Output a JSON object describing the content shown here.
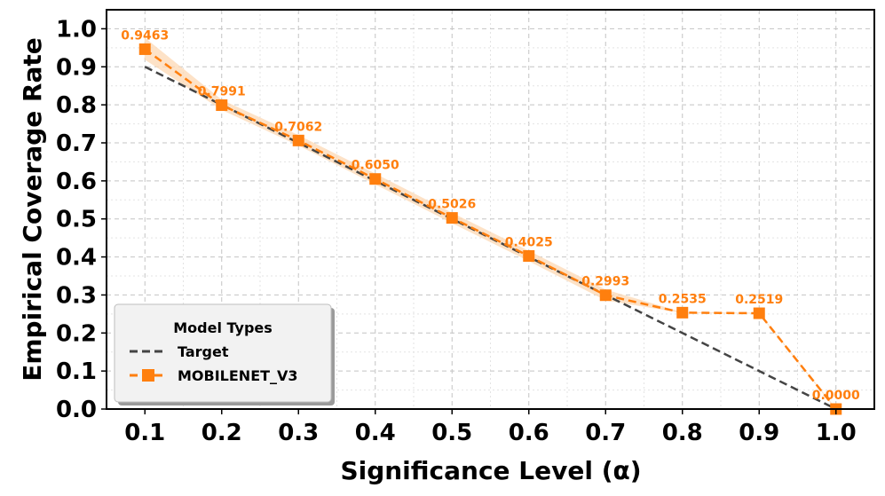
{
  "chart_data": {
    "type": "line",
    "xlabel": "Significance Level (α)",
    "ylabel": "Empirical Coverage Rate",
    "xlim": [
      0.05,
      1.05
    ],
    "ylim": [
      0.0,
      1.05
    ],
    "x_ticks": [
      0.1,
      0.2,
      0.3,
      0.4,
      0.5,
      0.6,
      0.7,
      0.8,
      0.9,
      1.0
    ],
    "x_tick_labels": [
      "0.1",
      "0.2",
      "0.3",
      "0.4",
      "0.5",
      "0.6",
      "0.7",
      "0.8",
      "0.9",
      "1.0"
    ],
    "y_ticks": [
      0.0,
      0.1,
      0.2,
      0.3,
      0.4,
      0.5,
      0.6,
      0.7,
      0.8,
      0.9,
      1.0
    ],
    "y_tick_labels": [
      "0.0",
      "0.1",
      "0.2",
      "0.3",
      "0.4",
      "0.5",
      "0.6",
      "0.7",
      "0.8",
      "0.9",
      "1.0"
    ],
    "grid": true,
    "legend": {
      "title": "Model Types",
      "placement": "lower-left",
      "entries": [
        "Target",
        "MOBILENET_V3"
      ]
    },
    "series": [
      {
        "name": "Target",
        "style": "dashed",
        "color": "#444444",
        "x": [
          0.1,
          1.0
        ],
        "values": [
          0.9,
          0.0
        ]
      },
      {
        "name": "MOBILENET_V3",
        "style": "dashed-square-markers",
        "color": "#ff7f0e",
        "band_color": "#fdd9b5",
        "x": [
          0.1,
          0.2,
          0.3,
          0.4,
          0.5,
          0.6,
          0.7,
          0.8,
          0.9,
          1.0
        ],
        "values": [
          0.9463,
          0.7991,
          0.7062,
          0.605,
          0.5026,
          0.4025,
          0.2993,
          0.2535,
          0.2519,
          0.0
        ],
        "band_low": [
          0.92,
          0.788,
          0.694,
          0.592,
          0.49,
          0.39,
          0.287,
          0.2535,
          0.2519,
          0.0
        ],
        "band_high": [
          0.975,
          0.812,
          0.719,
          0.618,
          0.515,
          0.415,
          0.313,
          0.2535,
          0.2519,
          0.0
        ],
        "data_labels": [
          "0.9463",
          "0.7991",
          "0.7062",
          "0.6050",
          "0.5026",
          "0.4025",
          "0.2993",
          "0.2535",
          "0.2519",
          "0.0000"
        ]
      }
    ]
  }
}
